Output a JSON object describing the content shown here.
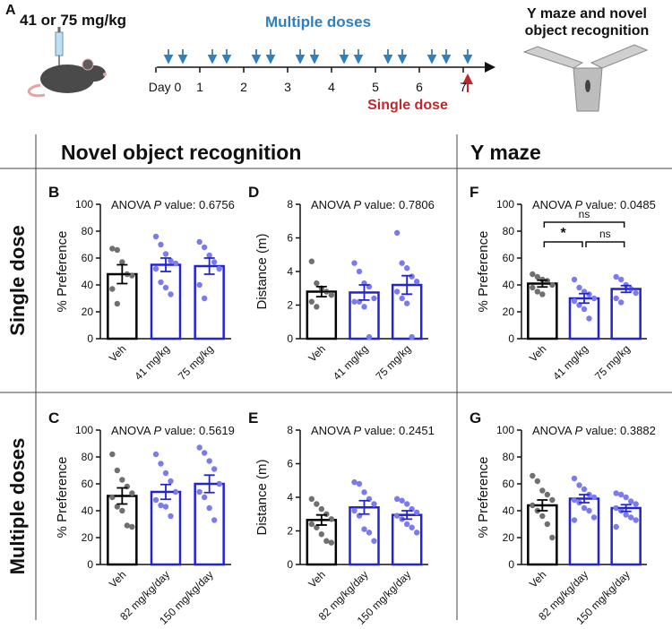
{
  "panel_a": {
    "letter": "A",
    "dose_label": "41 or 75 mg/kg",
    "multiple_label": "Multiple doses",
    "single_label": "Single dose",
    "days": [
      "Day 0",
      "1",
      "2",
      "3",
      "4",
      "5",
      "6",
      "7"
    ],
    "test_label": [
      "Y maze and novel",
      "object recognition"
    ]
  },
  "headers": {
    "columns": [
      "Novel object recognition",
      "Y maze"
    ],
    "rows": [
      "Single dose",
      "Multiple doses"
    ]
  },
  "chart_data": [
    {
      "type": "bar",
      "letter": "B",
      "annotation": {
        "pre": "ANOVA ",
        "italic": "P",
        "post": " value: 0.6756"
      },
      "ylabel": "% Preference",
      "categories": [
        "Veh",
        "41 mg/kg",
        "75 mg/kg"
      ],
      "values": [
        48,
        55,
        54
      ],
      "errors": [
        7,
        5,
        6
      ],
      "points": [
        [
          67,
          66,
          57,
          48,
          47,
          37,
          26
        ],
        [
          76,
          70,
          63,
          58,
          56,
          52,
          42,
          38,
          33
        ],
        [
          72,
          68,
          62,
          57,
          52,
          40,
          30
        ]
      ],
      "bar_edge_colors": [
        "#000000",
        "#2323d6",
        "#2323d6"
      ],
      "point_colors": [
        "#707070",
        "#7b7bf0",
        "#7b7bf0"
      ],
      "ylim": [
        0,
        100
      ],
      "yticks": [
        0,
        20,
        40,
        60,
        80,
        100
      ]
    },
    {
      "type": "bar",
      "letter": "D",
      "annotation": {
        "pre": "ANOVA ",
        "italic": "P",
        "post": " value: 0.7806"
      },
      "ylabel": "Distance (m)",
      "categories": [
        "Veh",
        "41 mg/kg",
        "75 mg/kg"
      ],
      "values": [
        2.8,
        2.75,
        3.2
      ],
      "errors": [
        0.3,
        0.45,
        0.55
      ],
      "points": [
        [
          4.6,
          3.3,
          3.0,
          2.8,
          2.6,
          2.2,
          1.9
        ],
        [
          4.5,
          4.0,
          3.3,
          3.1,
          2.4,
          2.2,
          2.2,
          1.9,
          0.1
        ],
        [
          6.3,
          4.5,
          4.2,
          3.7,
          3.4,
          2.8,
          2.4,
          2.1,
          0.1
        ]
      ],
      "bar_edge_colors": [
        "#000000",
        "#2323d6",
        "#2323d6"
      ],
      "point_colors": [
        "#707070",
        "#7b7bf0",
        "#7b7bf0"
      ],
      "ylim": [
        0,
        8
      ],
      "yticks": [
        0,
        2,
        4,
        6,
        8
      ]
    },
    {
      "type": "bar",
      "letter": "F",
      "annotation": {
        "pre": "ANOVA ",
        "italic": "P",
        "post": " value: 0.0485"
      },
      "ylabel": "% Preference",
      "categories": [
        "Veh",
        "41 mg/kg",
        "75 mg/kg"
      ],
      "values": [
        41,
        30,
        37
      ],
      "errors": [
        2.5,
        3.5,
        2.5
      ],
      "points": [
        [
          48,
          46,
          44,
          43,
          40,
          38,
          35,
          33
        ],
        [
          44,
          38,
          35,
          33,
          30,
          28,
          25,
          22,
          15
        ],
        [
          46,
          44,
          40,
          37,
          34,
          30,
          27
        ]
      ],
      "bar_edge_colors": [
        "#000000",
        "#2323d6",
        "#2323d6"
      ],
      "point_colors": [
        "#707070",
        "#7b7bf0",
        "#7b7bf0"
      ],
      "ylim": [
        0,
        100
      ],
      "yticks": [
        0,
        20,
        40,
        60,
        80,
        100
      ],
      "brackets": [
        {
          "from": 0,
          "to": 2,
          "label": "ns"
        },
        {
          "from": 0,
          "to": 1,
          "label": "*"
        },
        {
          "from": 1,
          "to": 2,
          "label": "ns"
        }
      ]
    },
    {
      "type": "bar",
      "letter": "C",
      "annotation": {
        "pre": "ANOVA ",
        "italic": "P",
        "post": " value: 0.5619"
      },
      "ylabel": "% Preference",
      "categories": [
        "Veh",
        "82 mg/kg/day",
        "150 mg/kg/day"
      ],
      "values": [
        51,
        54,
        60
      ],
      "errors": [
        6,
        5.5,
        6.5
      ],
      "points": [
        [
          82,
          70,
          63,
          58,
          53,
          50,
          43,
          40,
          29,
          28
        ],
        [
          82,
          75,
          68,
          62,
          54,
          48,
          44,
          43,
          36
        ],
        [
          87,
          83,
          77,
          71,
          60,
          54,
          50,
          42,
          33
        ]
      ],
      "bar_edge_colors": [
        "#000000",
        "#2323d6",
        "#2323d6"
      ],
      "point_colors": [
        "#707070",
        "#7b7bf0",
        "#7b7bf0"
      ],
      "ylim": [
        0,
        100
      ],
      "yticks": [
        0,
        20,
        40,
        60,
        80,
        100
      ]
    },
    {
      "type": "bar",
      "letter": "E",
      "annotation": {
        "pre": "ANOVA ",
        "italic": "P",
        "post": " value: 0.2451"
      },
      "ylabel": "Distance (m)",
      "categories": [
        "Veh",
        "82 mg/kg/day",
        "150 mg/kg/day"
      ],
      "values": [
        2.65,
        3.4,
        2.95
      ],
      "errors": [
        0.3,
        0.4,
        0.25
      ],
      "points": [
        [
          3.9,
          3.6,
          3.3,
          3.0,
          2.7,
          2.4,
          2.2,
          1.8,
          1.4,
          1.3
        ],
        [
          4.9,
          4.8,
          4.3,
          3.9,
          3.6,
          3.2,
          2.9,
          2.1,
          1.9,
          1.4
        ],
        [
          3.9,
          3.8,
          3.6,
          3.3,
          3.1,
          2.9,
          2.7,
          2.4,
          2.2,
          1.9
        ]
      ],
      "bar_edge_colors": [
        "#000000",
        "#2323d6",
        "#2323d6"
      ],
      "point_colors": [
        "#707070",
        "#7b7bf0",
        "#7b7bf0"
      ],
      "ylim": [
        0,
        8
      ],
      "yticks": [
        0,
        2,
        4,
        6,
        8
      ]
    },
    {
      "type": "bar",
      "letter": "G",
      "annotation": {
        "pre": "ANOVA ",
        "italic": "P",
        "post": " value: 0.3882"
      },
      "ylabel": "% Preference",
      "categories": [
        "Veh",
        "82 mg/kg/day",
        "150 mg/kg/day"
      ],
      "values": [
        44,
        49,
        42
      ],
      "errors": [
        4,
        3,
        2.5
      ],
      "points": [
        [
          66,
          62,
          55,
          52,
          48,
          44,
          40,
          36,
          30,
          20
        ],
        [
          64,
          59,
          56,
          52,
          50,
          48,
          46,
          42,
          40,
          35,
          33
        ],
        [
          53,
          52,
          50,
          47,
          45,
          42,
          40,
          37,
          35,
          33,
          28
        ]
      ],
      "bar_edge_colors": [
        "#000000",
        "#2323d6",
        "#2323d6"
      ],
      "point_colors": [
        "#707070",
        "#7b7bf0",
        "#7b7bf0"
      ],
      "ylim": [
        0,
        100
      ],
      "yticks": [
        0,
        20,
        40,
        60,
        80,
        100
      ]
    }
  ]
}
